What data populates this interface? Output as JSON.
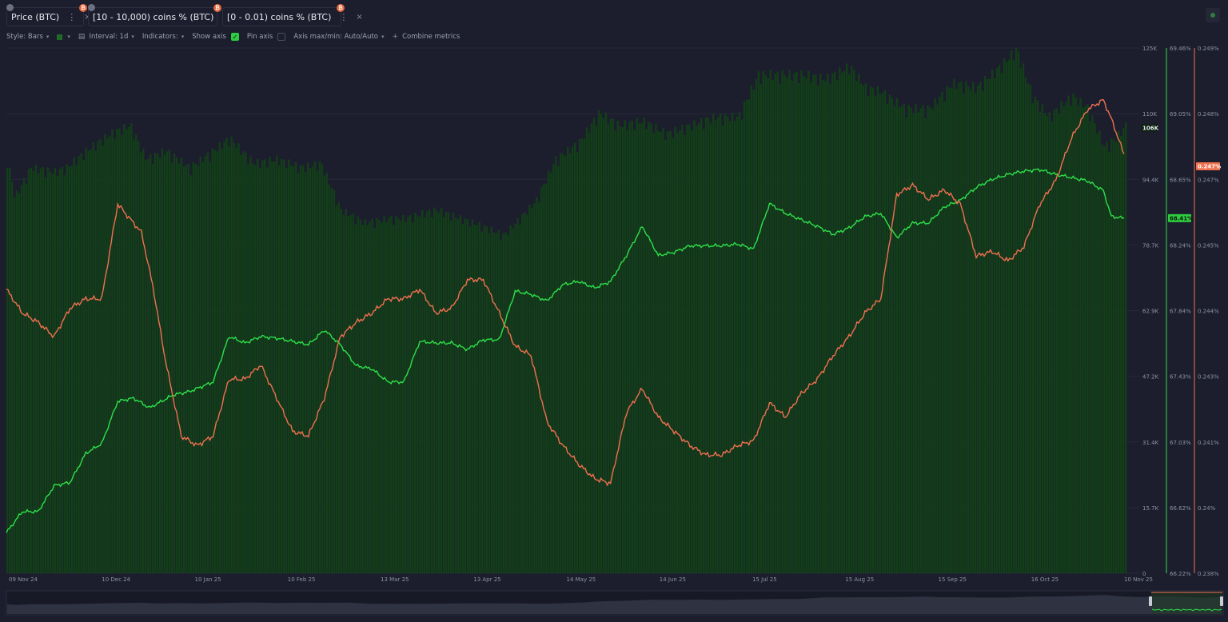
{
  "tabs": [
    {
      "label": "Price (BTC)",
      "color": "#1a6b2a",
      "menu": "⋮",
      "close": "×",
      "badge": "₿"
    },
    {
      "label": "[10 - 10,000) coins % (BTC)",
      "color": "#2ee04a",
      "menu": "⋮",
      "close": "×",
      "badge": "₿"
    },
    {
      "label": "[0 - 0.01) coins % (BTC)",
      "color": "#f07050",
      "menu": "⋮",
      "close": "×",
      "badge": "₿"
    }
  ],
  "toolbar": {
    "style_label": "Style: Bars",
    "interval_label": "Interval: 1d",
    "indicators_label": "Indicators:",
    "show_axis_label": "Show axis",
    "show_axis_checked": true,
    "pin_axis_label": "Pin axis",
    "pin_axis_checked": false,
    "axis_minmax_label": "Axis max/min: Auto/Auto",
    "combine_label": "Combine metrics",
    "plus": "+",
    "check": "✓"
  },
  "chart_data": {
    "type": "bar",
    "title": "",
    "x_dates": [
      "09 Nov 24",
      "10 Dec 24",
      "10 Jan 25",
      "10 Feb 25",
      "13 Mar 25",
      "13 Apr 25",
      "14 May 25",
      "14 Jun 25",
      "15 Jul 25",
      "15 Aug 25",
      "15 Sep 25",
      "16 Oct 25",
      "10 Nov 25"
    ],
    "axes": {
      "price": {
        "ticks": [
          "125K",
          "110K",
          "94.4K",
          "78.7K",
          "62.9K",
          "47.2K",
          "31.4K",
          "15.7K",
          "0"
        ],
        "ylim": [
          0,
          125000
        ],
        "current_label": "106K",
        "current_value": 106000
      },
      "coins_10_10000": {
        "ticks": [
          "69.46%",
          "69.05%",
          "68.65%",
          "68.24%",
          "67.84%",
          "67.43%",
          "67.03%",
          "66.62%",
          "66.22%"
        ],
        "ylim": [
          66.22,
          69.46
        ],
        "current_label": "68.41%",
        "current_value": 68.41
      },
      "coins_0_001": {
        "ticks": [
          "0.249%",
          "0.248%",
          "0.247%",
          "0.245%",
          "0.244%",
          "0.243%",
          "0.241%",
          "0.24%",
          "0.238%"
        ],
        "ylim": [
          0.2382,
          0.2493
        ],
        "current_label": "0.247%",
        "current_value": 0.2468
      }
    },
    "series": [
      {
        "name": "Price (BTC)",
        "type": "bar",
        "color": "#0f3d16",
        "points": [
          [
            0,
            98000
          ],
          [
            10,
            89000
          ],
          [
            30,
            96000
          ],
          [
            60,
            95000
          ],
          [
            75,
            96000
          ],
          [
            100,
            100000
          ],
          [
            130,
            104000
          ],
          [
            155,
            106000
          ],
          [
            175,
            98000
          ],
          [
            200,
            100000
          ],
          [
            230,
            96000
          ],
          [
            260,
            100000
          ],
          [
            280,
            103000
          ],
          [
            310,
            97000
          ],
          [
            340,
            98000
          ],
          [
            370,
            96000
          ],
          [
            395,
            97000
          ],
          [
            420,
            86000
          ],
          [
            450,
            83000
          ],
          [
            480,
            84000
          ],
          [
            500,
            84000
          ],
          [
            540,
            86000
          ],
          [
            570,
            84000
          ],
          [
            600,
            82000
          ],
          [
            625,
            80000
          ],
          [
            650,
            85000
          ],
          [
            665,
            88000
          ],
          [
            690,
            98000
          ],
          [
            720,
            102000
          ],
          [
            745,
            109000
          ],
          [
            770,
            106000
          ],
          [
            800,
            107000
          ],
          [
            830,
            104000
          ],
          [
            860,
            106000
          ],
          [
            890,
            108000
          ],
          [
            920,
            108000
          ],
          [
            945,
            118000
          ],
          [
            970,
            118000
          ],
          [
            1000,
            118000
          ],
          [
            1030,
            117000
          ],
          [
            1060,
            120000
          ],
          [
            1080,
            115000
          ],
          [
            1100,
            114000
          ],
          [
            1130,
            110000
          ],
          [
            1160,
            110000
          ],
          [
            1190,
            116000
          ],
          [
            1220,
            115000
          ],
          [
            1250,
            120000
          ],
          [
            1270,
            124000
          ],
          [
            1290,
            113000
          ],
          [
            1310,
            108000
          ],
          [
            1340,
            113000
          ],
          [
            1360,
            110000
          ],
          [
            1380,
            101000
          ],
          [
            1395,
            103000
          ],
          [
            1407,
            106000
          ]
        ]
      },
      {
        "name": "[10 - 10,000) coins % (BTC)",
        "type": "line",
        "color": "#2ee04a",
        "points": [
          [
            0,
            66.47
          ],
          [
            20,
            66.6
          ],
          [
            40,
            66.6
          ],
          [
            60,
            66.76
          ],
          [
            80,
            66.78
          ],
          [
            100,
            66.96
          ],
          [
            120,
            67.02
          ],
          [
            140,
            67.28
          ],
          [
            160,
            67.3
          ],
          [
            180,
            67.24
          ],
          [
            210,
            67.32
          ],
          [
            230,
            67.34
          ],
          [
            260,
            67.4
          ],
          [
            280,
            67.68
          ],
          [
            300,
            67.64
          ],
          [
            320,
            67.68
          ],
          [
            340,
            67.67
          ],
          [
            360,
            67.65
          ],
          [
            380,
            67.63
          ],
          [
            400,
            67.72
          ],
          [
            420,
            67.63
          ],
          [
            440,
            67.5
          ],
          [
            460,
            67.48
          ],
          [
            480,
            67.4
          ],
          [
            500,
            67.4
          ],
          [
            520,
            67.65
          ],
          [
            540,
            67.64
          ],
          [
            560,
            67.64
          ],
          [
            580,
            67.6
          ],
          [
            600,
            67.66
          ],
          [
            620,
            67.66
          ],
          [
            640,
            67.96
          ],
          [
            660,
            67.94
          ],
          [
            680,
            67.9
          ],
          [
            700,
            68.0
          ],
          [
            720,
            68.02
          ],
          [
            740,
            67.98
          ],
          [
            760,
            68.02
          ],
          [
            780,
            68.18
          ],
          [
            800,
            68.36
          ],
          [
            820,
            68.18
          ],
          [
            840,
            68.2
          ],
          [
            860,
            68.24
          ],
          [
            880,
            68.24
          ],
          [
            900,
            68.24
          ],
          [
            920,
            68.25
          ],
          [
            940,
            68.22
          ],
          [
            960,
            68.5
          ],
          [
            980,
            68.44
          ],
          [
            1000,
            68.4
          ],
          [
            1020,
            68.36
          ],
          [
            1040,
            68.31
          ],
          [
            1060,
            68.35
          ],
          [
            1080,
            68.42
          ],
          [
            1100,
            68.44
          ],
          [
            1120,
            68.29
          ],
          [
            1140,
            68.38
          ],
          [
            1160,
            68.38
          ],
          [
            1180,
            68.48
          ],
          [
            1200,
            68.52
          ],
          [
            1220,
            68.6
          ],
          [
            1240,
            68.65
          ],
          [
            1260,
            68.68
          ],
          [
            1280,
            68.7
          ],
          [
            1300,
            68.71
          ],
          [
            1320,
            68.68
          ],
          [
            1340,
            68.66
          ],
          [
            1360,
            68.64
          ],
          [
            1380,
            68.58
          ],
          [
            1390,
            68.42
          ],
          [
            1407,
            68.41
          ]
        ]
      },
      {
        "name": "[0 - 0.01) coins % (BTC)",
        "type": "line",
        "color": "#f07050",
        "points": [
          [
            0,
            0.2442
          ],
          [
            20,
            0.2437
          ],
          [
            40,
            0.2435
          ],
          [
            60,
            0.2432
          ],
          [
            80,
            0.2438
          ],
          [
            100,
            0.244
          ],
          [
            120,
            0.244
          ],
          [
            140,
            0.246
          ],
          [
            155,
            0.2457
          ],
          [
            170,
            0.2454
          ],
          [
            185,
            0.2442
          ],
          [
            200,
            0.2427
          ],
          [
            220,
            0.2411
          ],
          [
            240,
            0.2409
          ],
          [
            260,
            0.2411
          ],
          [
            280,
            0.2423
          ],
          [
            300,
            0.2423
          ],
          [
            320,
            0.2426
          ],
          [
            340,
            0.2419
          ],
          [
            360,
            0.2412
          ],
          [
            380,
            0.2411
          ],
          [
            400,
            0.2419
          ],
          [
            420,
            0.2432
          ],
          [
            440,
            0.2435
          ],
          [
            460,
            0.2437
          ],
          [
            480,
            0.244
          ],
          [
            500,
            0.244
          ],
          [
            520,
            0.2442
          ],
          [
            540,
            0.2437
          ],
          [
            560,
            0.2438
          ],
          [
            580,
            0.2444
          ],
          [
            600,
            0.2444
          ],
          [
            620,
            0.2437
          ],
          [
            640,
            0.243
          ],
          [
            660,
            0.2428
          ],
          [
            680,
            0.2414
          ],
          [
            700,
            0.2409
          ],
          [
            720,
            0.2405
          ],
          [
            740,
            0.2402
          ],
          [
            760,
            0.2401
          ],
          [
            780,
            0.2416
          ],
          [
            800,
            0.2421
          ],
          [
            820,
            0.2415
          ],
          [
            840,
            0.2412
          ],
          [
            860,
            0.2409
          ],
          [
            880,
            0.2407
          ],
          [
            900,
            0.2407
          ],
          [
            920,
            0.2409
          ],
          [
            940,
            0.241
          ],
          [
            960,
            0.2418
          ],
          [
            980,
            0.2415
          ],
          [
            1000,
            0.242
          ],
          [
            1020,
            0.2423
          ],
          [
            1040,
            0.2428
          ],
          [
            1060,
            0.2432
          ],
          [
            1080,
            0.2437
          ],
          [
            1100,
            0.244
          ],
          [
            1120,
            0.2462
          ],
          [
            1140,
            0.2464
          ],
          [
            1160,
            0.2461
          ],
          [
            1180,
            0.2463
          ],
          [
            1200,
            0.246
          ],
          [
            1220,
            0.2449
          ],
          [
            1240,
            0.245
          ],
          [
            1260,
            0.2448
          ],
          [
            1280,
            0.2451
          ],
          [
            1300,
            0.246
          ],
          [
            1320,
            0.2465
          ],
          [
            1340,
            0.2474
          ],
          [
            1360,
            0.248
          ],
          [
            1380,
            0.2482
          ],
          [
            1390,
            0.2478
          ],
          [
            1407,
            0.247
          ]
        ]
      }
    ]
  }
}
